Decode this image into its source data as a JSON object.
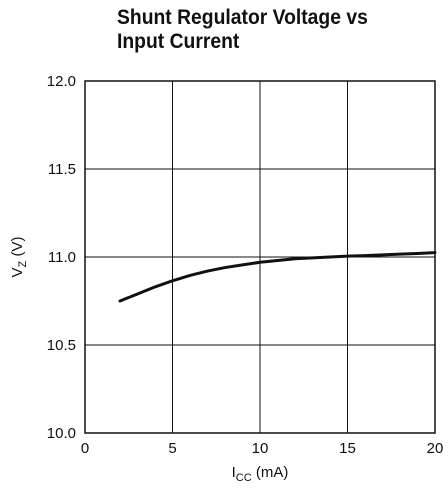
{
  "chart_data": {
    "type": "line",
    "title": "Shunt Regulator Voltage vs Input Current",
    "xlabel": {
      "main": "I",
      "sub": "CC",
      "unit": " (mA)"
    },
    "ylabel": {
      "main": "V",
      "sub": "Z",
      "unit": " (V)"
    },
    "xlim": [
      0,
      20
    ],
    "ylim": [
      10.0,
      12.0
    ],
    "xticks": [
      0,
      5,
      10,
      15,
      20
    ],
    "xtick_labels": [
      "0",
      "5",
      "10",
      "15",
      "20"
    ],
    "yticks": [
      10.0,
      10.5,
      11.0,
      11.5,
      12.0
    ],
    "ytick_labels": [
      "10.0",
      "10.5",
      "11.0",
      "11.5",
      "12.0"
    ],
    "grid": true,
    "series": [
      {
        "x": [
          2,
          3,
          4,
          5,
          6,
          7,
          8,
          9,
          10,
          11,
          12,
          13,
          14,
          15,
          16,
          17,
          18,
          19,
          20
        ],
        "y": [
          10.75,
          10.79,
          10.83,
          10.865,
          10.895,
          10.92,
          10.94,
          10.955,
          10.97,
          10.98,
          10.99,
          10.995,
          11.0,
          11.005,
          11.008,
          11.012,
          11.016,
          11.02,
          11.025
        ],
        "color": "#111111"
      }
    ]
  }
}
